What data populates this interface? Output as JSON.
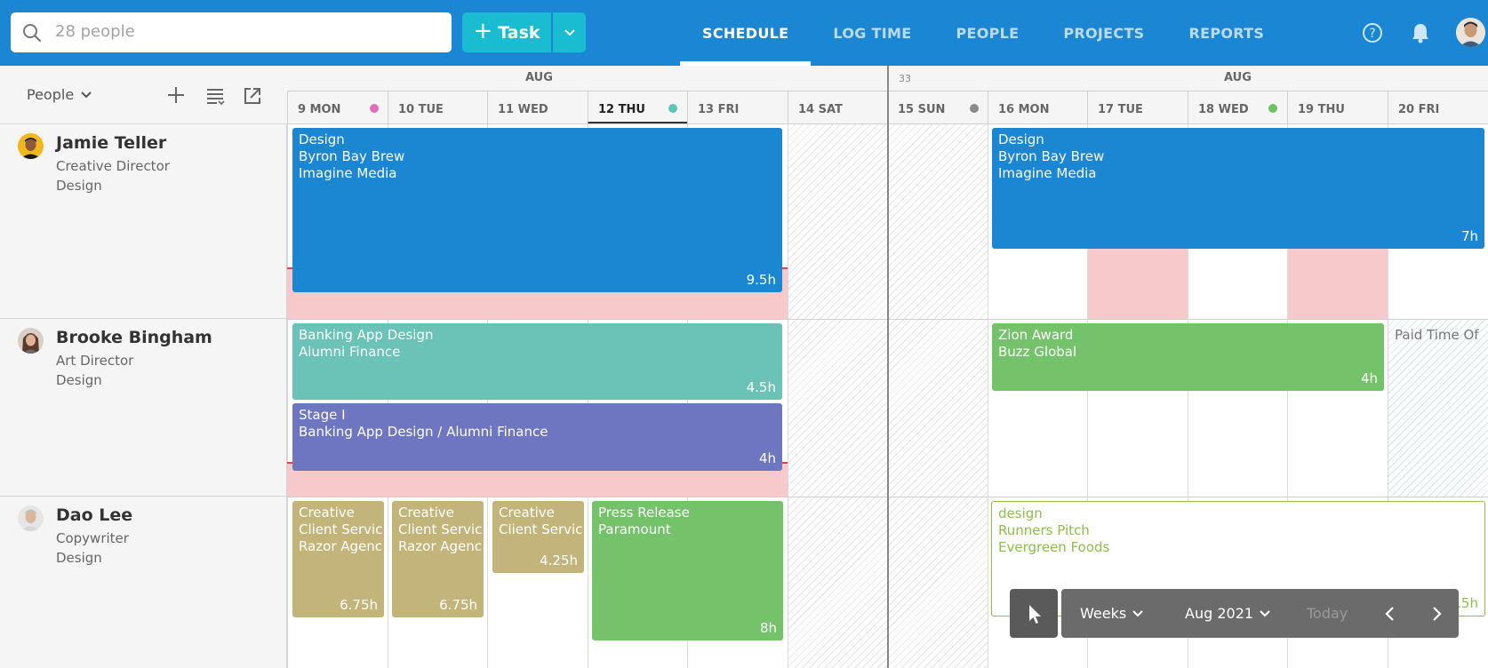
{
  "header": {
    "search_placeholder": "28 people",
    "task_button_label": "Task",
    "nav": [
      "SCHEDULE",
      "LOG TIME",
      "PEOPLE",
      "PROJECTS",
      "REPORTS"
    ],
    "active_nav": "SCHEDULE"
  },
  "left_toolbar": {
    "filter_label": "People"
  },
  "calendar": {
    "months": [
      "AUG",
      "AUG"
    ],
    "week_number": "33",
    "days": [
      "9 MON",
      "10 TUE",
      "11 WED",
      "12 THU",
      "13 FRI",
      "14 SAT",
      "15 SUN",
      "16 MON",
      "17 TUE",
      "18 WED",
      "19 THU",
      "20 FRI"
    ],
    "today": "12 THU",
    "day_dot_colors": {
      "9 MON": "#e06fb9",
      "12 THU": "#5ec4b6",
      "15 SUN": "#8a8a8a",
      "18 WED": "#6cc35e"
    }
  },
  "people": [
    {
      "name": "Jamie Teller",
      "role": "Creative Director",
      "department": "Design"
    },
    {
      "name": "Brooke Bingham",
      "role": "Art Director",
      "department": "Design"
    },
    {
      "name": "Dao Lee",
      "role": "Copywriter",
      "department": "Design"
    }
  ],
  "tasks": {
    "jamie_1": {
      "lines": [
        "Design",
        "Byron Bay Brew",
        "Imagine Media"
      ],
      "hours": "9.5h",
      "color": "#1b87d3"
    },
    "jamie_2": {
      "lines": [
        "Design",
        "Byron Bay Brew",
        "Imagine Media"
      ],
      "hours": "7h",
      "color": "#1b87d3"
    },
    "brooke_1": {
      "lines": [
        "Banking App Design",
        "Alumni Finance"
      ],
      "hours": "4.5h",
      "color": "#6bc2b6"
    },
    "brooke_2": {
      "lines": [
        "Stage I",
        "Banking App Design / Alumni Finance"
      ],
      "hours": "4h",
      "color": "#6e76c1"
    },
    "brooke_3": {
      "lines": [
        "Zion Award",
        "Buzz Global"
      ],
      "hours": "4h",
      "color": "#74c26a"
    },
    "brooke_pto": {
      "lines": [
        "Paid Time Of"
      ]
    },
    "dao_1": {
      "lines": [
        "Creative",
        "Client Servic",
        "Razor Agenc"
      ],
      "hours": "6.75h",
      "color": "#c3b57a"
    },
    "dao_2": {
      "lines": [
        "Creative",
        "Client Servic",
        "Razor Agenc"
      ],
      "hours": "6.75h",
      "color": "#c3b57a"
    },
    "dao_3": {
      "lines": [
        "Creative",
        "Client Servic"
      ],
      "hours": "4.25h",
      "color": "#c3b57a"
    },
    "dao_4": {
      "lines": [
        "Press Release",
        "Paramount"
      ],
      "hours": "8h",
      "color": "#74c26a"
    },
    "dao_5": {
      "lines": [
        "design",
        "Runners Pitch",
        "Evergreen Foods"
      ],
      "hours": "6.5h",
      "color": "#8ebf4b"
    }
  },
  "controls": {
    "view": "Weeks",
    "period": "Aug 2021",
    "today": "Today"
  }
}
